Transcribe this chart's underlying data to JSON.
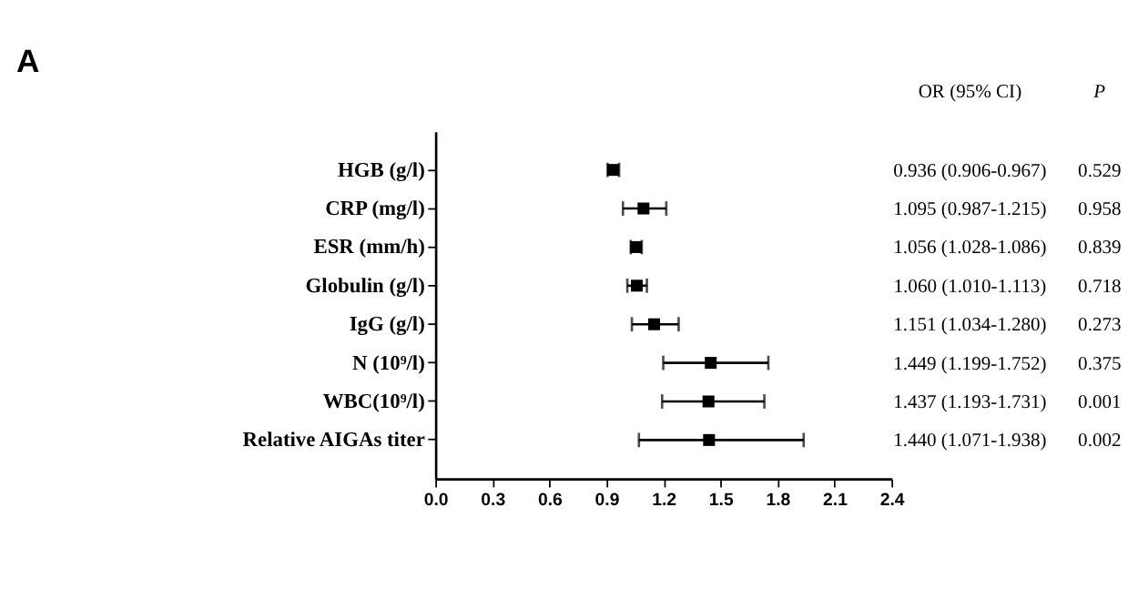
{
  "chart_data": {
    "type": "scatter",
    "orientation": "horizontal",
    "title": "A",
    "categories": [
      "HGB (g/l)",
      "CRP (mg/l)",
      "ESR (mm/h)",
      "Globulin (g/l)",
      "IgG (g/l)",
      "N (10⁹/l)",
      "WBC(10⁹/l)",
      "Relative AIGAs titer"
    ],
    "values": [
      0.936,
      1.095,
      1.056,
      1.06,
      1.151,
      1.449,
      1.437,
      1.44
    ],
    "errors": [
      [
        0.906,
        0.967
      ],
      [
        0.987,
        1.215
      ],
      [
        1.028,
        1.086
      ],
      [
        1.01,
        1.113
      ],
      [
        1.034,
        1.28
      ],
      [
        1.199,
        1.752
      ],
      [
        1.193,
        1.731
      ],
      [
        1.071,
        1.938
      ]
    ],
    "value_labels": [
      "0.936 (0.906-0.967)",
      "1.095 (0.987-1.215)",
      "1.056 (1.028-1.086)",
      "1.060 (1.010-1.113)",
      "1.151 (1.034-1.280)",
      "1.449 (1.199-1.752)",
      "1.437 (1.193-1.731)",
      "1.440 (1.071-1.938)"
    ],
    "annotations": [
      "OR (95% CI)",
      "P",
      "0.529",
      "0.958",
      "0.839",
      "0.718",
      "0.273",
      "0.375",
      "0.001",
      "0.002"
    ],
    "color": "#000000",
    "marker": "square",
    "xlim": [
      0,
      2.4
    ],
    "xticks": [
      {
        "value": 0,
        "label": "0.0"
      },
      0.3,
      0.6,
      0.9,
      1.2,
      1.5,
      1.8,
      2.1,
      2.4
    ]
  }
}
